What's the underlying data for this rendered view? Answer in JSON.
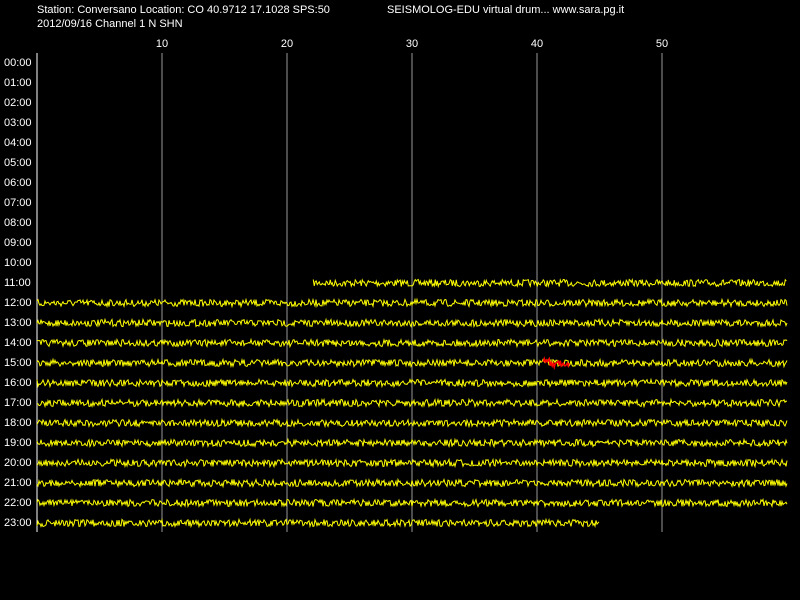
{
  "chart_data": {
    "type": "helicorder",
    "title": "Station: Conversano Location: CO 40.9712 17.1028 SPS:50",
    "subtitle": "SEISMOLOG-EDU virtual drum... www.sara.pg.it",
    "info": "2012/09/16  Channel 1 N SHN",
    "xlim": [
      0,
      60
    ],
    "xticks": [
      10,
      20,
      30,
      40,
      50
    ],
    "grid": true,
    "categories": [
      "00:00",
      "01:00",
      "02:00",
      "03:00",
      "04:00",
      "05:00",
      "06:00",
      "07:00",
      "08:00",
      "09:00",
      "10:00",
      "11:00",
      "12:00",
      "13:00",
      "14:00",
      "15:00",
      "16:00",
      "17:00",
      "18:00",
      "19:00",
      "20:00",
      "21:00",
      "22:00",
      "23:00"
    ],
    "trace_start": [
      null,
      null,
      null,
      null,
      null,
      null,
      null,
      null,
      null,
      null,
      null,
      22.1,
      0,
      0,
      0,
      0,
      0,
      0,
      0,
      0,
      0,
      0,
      0,
      0
    ],
    "trace_end": [
      null,
      null,
      null,
      null,
      null,
      null,
      null,
      null,
      null,
      null,
      null,
      60,
      60,
      60,
      60,
      60,
      60,
      60,
      60,
      60,
      60,
      60,
      60,
      45
    ],
    "color": "#ffff00",
    "event": {
      "row": 15,
      "start": 40.5,
      "end": 42.6,
      "color": "#ff0000"
    }
  }
}
